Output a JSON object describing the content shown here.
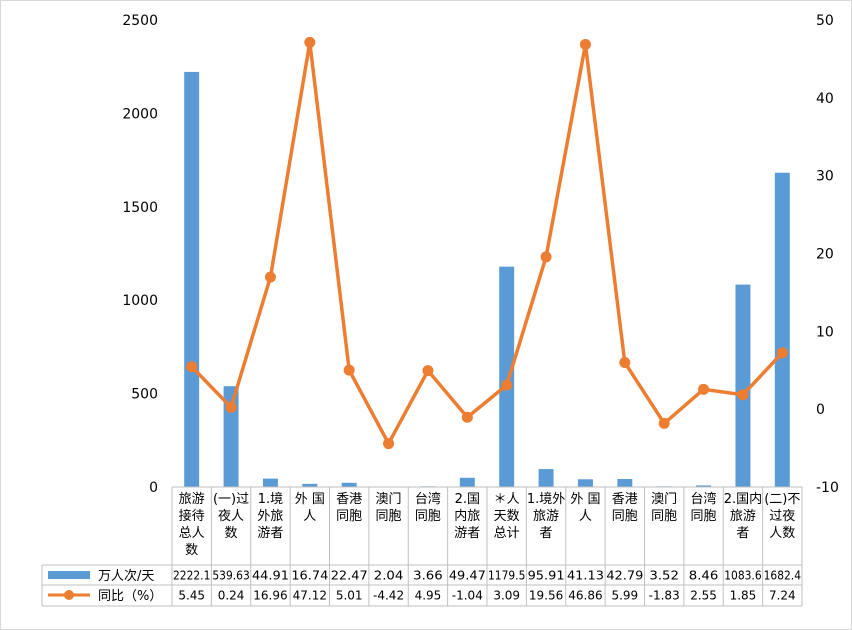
{
  "chart_data": {
    "type": "bar",
    "categories": [
      "旅游\n接待\n总人\n数",
      "(一)过\n夜人\n数",
      "1.境\n外旅\n游者",
      "外 国\n人",
      "香港\n同胞",
      "澳门\n同胞",
      "台湾\n同胞",
      "2.国\n内旅\n游者",
      "＊人\n天数\n总计",
      "1.境外\n旅游\n者",
      "外 国\n人",
      "香港\n同胞",
      "澳门\n同胞",
      "台湾\n同胞",
      "2.国内\n旅游\n者",
      "(二)不\n过夜\n人数"
    ],
    "series": [
      {
        "name": "万人次/天",
        "type": "bar",
        "axis": "left",
        "color": "#5B9BD5",
        "values": [
          2222.1,
          539.63,
          44.91,
          16.74,
          22.47,
          2.04,
          3.66,
          49.47,
          1179.5,
          95.91,
          41.13,
          42.79,
          3.52,
          8.46,
          1083.6,
          1682.4
        ],
        "labels": [
          "2222.1",
          "539.63",
          "44.91",
          "16.74",
          "22.47",
          "2.04",
          "3.66",
          "49.47",
          "1179.5",
          "95.91",
          "41.13",
          "42.79",
          "3.52",
          "8.46",
          "1083.6",
          "1682.4"
        ]
      },
      {
        "name": "同比（%）",
        "type": "line",
        "axis": "right",
        "color": "#ED7D31",
        "values": [
          5.45,
          0.24,
          16.96,
          47.12,
          5.01,
          -4.42,
          4.95,
          -1.04,
          3.09,
          19.56,
          46.86,
          5.99,
          -1.83,
          2.55,
          1.85,
          7.24
        ],
        "labels": [
          "5.45",
          "0.24",
          "16.96",
          "47.12",
          "5.01",
          "-4.42",
          "4.95",
          "-1.04",
          "3.09",
          "19.56",
          "46.86",
          "5.99",
          "-1.83",
          "2.55",
          "1.85",
          "7.24"
        ]
      }
    ],
    "y_left": {
      "min": 0,
      "max": 2500,
      "ticks": [
        "0",
        "500",
        "1000",
        "1500",
        "2000",
        "2500"
      ]
    },
    "y_right": {
      "min": -10,
      "max": 50,
      "ticks": [
        "-10",
        "0",
        "10",
        "20",
        "30",
        "40",
        "50"
      ]
    },
    "grid": false,
    "legend": "data-table-bottom"
  }
}
